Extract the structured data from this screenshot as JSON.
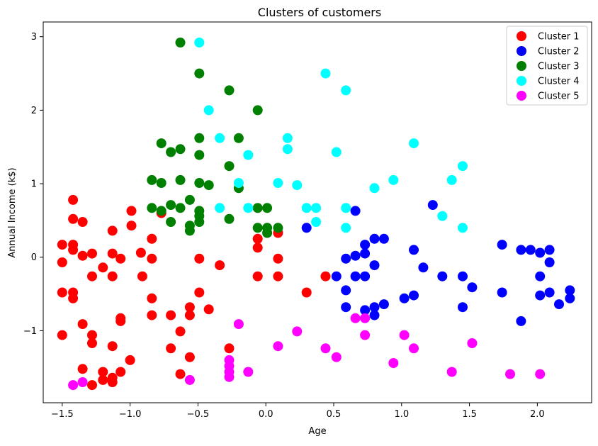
{
  "chart_data": {
    "type": "scatter",
    "title": "Clusters of customers",
    "xlabel": "Age",
    "ylabel": "Annual Income (k$)",
    "xlim": [
      -1.64,
      2.4
    ],
    "ylim": [
      -1.98,
      3.2
    ],
    "xticks": [
      -1.5,
      -1.0,
      -0.5,
      0.0,
      0.5,
      1.0,
      1.5,
      2.0
    ],
    "xtick_labels": [
      "−1.5",
      "−1.0",
      "−0.5",
      "0.0",
      "0.5",
      "1.0",
      "1.5",
      "2.0"
    ],
    "yticks": [
      -1,
      0,
      1,
      2,
      3
    ],
    "ytick_labels": [
      "−1",
      "0",
      "1",
      "2",
      "3"
    ],
    "grid": false,
    "legend_position": "top-right",
    "series": [
      {
        "name": "Cluster 1",
        "color": "#ff0000",
        "points": [
          [
            -1.42,
            0.78
          ],
          [
            -1.42,
            0.52
          ],
          [
            -1.35,
            0.48
          ],
          [
            -1.5,
            0.17
          ],
          [
            -1.42,
            0.17
          ],
          [
            -1.42,
            0.1
          ],
          [
            -1.35,
            0.02
          ],
          [
            -1.28,
            0.05
          ],
          [
            -1.5,
            -0.07
          ],
          [
            -1.28,
            -0.26
          ],
          [
            -1.2,
            -0.14
          ],
          [
            -1.5,
            -0.48
          ],
          [
            -1.42,
            -0.48
          ],
          [
            -1.42,
            -0.56
          ],
          [
            -1.35,
            -0.91
          ],
          [
            -1.5,
            -1.06
          ],
          [
            -1.28,
            -1.06
          ],
          [
            -1.28,
            -1.17
          ],
          [
            -1.35,
            -1.52
          ],
          [
            -1.2,
            -1.56
          ],
          [
            -1.2,
            -1.67
          ],
          [
            -1.28,
            -1.74
          ],
          [
            -1.13,
            -1.64
          ],
          [
            -1.13,
            -1.7
          ],
          [
            -1.13,
            0.36
          ],
          [
            -1.13,
            0.05
          ],
          [
            -1.07,
            -0.02
          ],
          [
            -1.13,
            -0.26
          ],
          [
            -1.13,
            -1.21
          ],
          [
            -1.07,
            -0.83
          ],
          [
            -1.07,
            -0.87
          ],
          [
            -1.07,
            -1.56
          ],
          [
            -1.0,
            -1.4
          ],
          [
            -0.99,
            0.63
          ],
          [
            -0.99,
            0.43
          ],
          [
            -0.92,
            0.06
          ],
          [
            -0.91,
            -0.26
          ],
          [
            -0.84,
            0.25
          ],
          [
            -0.84,
            -0.02
          ],
          [
            -0.84,
            -0.56
          ],
          [
            -0.84,
            -0.79
          ],
          [
            -0.77,
            0.6
          ],
          [
            -0.7,
            -0.79
          ],
          [
            -0.7,
            -1.24
          ],
          [
            -0.63,
            -1.01
          ],
          [
            -0.63,
            -1.59
          ],
          [
            -0.56,
            -0.68
          ],
          [
            -0.56,
            -0.79
          ],
          [
            -0.56,
            -1.36
          ],
          [
            -0.49,
            -0.02
          ],
          [
            -0.49,
            -0.48
          ],
          [
            -0.42,
            -0.71
          ],
          [
            -0.34,
            -0.11
          ],
          [
            -0.27,
            -1.24
          ],
          [
            -0.06,
            0.25
          ],
          [
            -0.06,
            0.13
          ],
          [
            -0.06,
            -0.26
          ],
          [
            0.09,
            0.33
          ],
          [
            0.09,
            -0.02
          ],
          [
            0.09,
            -0.26
          ],
          [
            0.3,
            -0.48
          ],
          [
            0.44,
            -0.26
          ]
        ]
      },
      {
        "name": "Cluster 2",
        "color": "#0000ff",
        "points": [
          [
            0.3,
            0.4
          ],
          [
            0.52,
            -0.26
          ],
          [
            0.59,
            -0.02
          ],
          [
            0.59,
            -0.45
          ],
          [
            0.59,
            -0.68
          ],
          [
            0.66,
            0.63
          ],
          [
            0.66,
            0.02
          ],
          [
            0.66,
            -0.26
          ],
          [
            0.73,
            0.17
          ],
          [
            0.73,
            0.05
          ],
          [
            0.73,
            -0.26
          ],
          [
            0.73,
            -0.72
          ],
          [
            0.8,
            0.25
          ],
          [
            0.8,
            -0.11
          ],
          [
            0.8,
            -0.68
          ],
          [
            0.8,
            -0.79
          ],
          [
            0.87,
            0.25
          ],
          [
            0.87,
            -0.64
          ],
          [
            1.02,
            -0.56
          ],
          [
            1.09,
            0.1
          ],
          [
            1.09,
            -0.52
          ],
          [
            1.16,
            -0.14
          ],
          [
            1.23,
            0.71
          ],
          [
            1.3,
            -0.26
          ],
          [
            1.45,
            -0.26
          ],
          [
            1.45,
            -0.68
          ],
          [
            1.52,
            -0.41
          ],
          [
            1.74,
            0.17
          ],
          [
            1.74,
            -0.48
          ],
          [
            1.88,
            0.1
          ],
          [
            1.88,
            -0.87
          ],
          [
            1.95,
            0.1
          ],
          [
            2.02,
            0.06
          ],
          [
            2.02,
            -0.26
          ],
          [
            2.02,
            -0.52
          ],
          [
            2.09,
            0.1
          ],
          [
            2.09,
            -0.07
          ],
          [
            2.09,
            -0.48
          ],
          [
            2.16,
            -0.64
          ],
          [
            2.24,
            -0.45
          ],
          [
            2.24,
            -0.56
          ]
        ]
      },
      {
        "name": "Cluster 3",
        "color": "#008000",
        "points": [
          [
            -0.63,
            2.92
          ],
          [
            -0.49,
            2.5
          ],
          [
            -0.27,
            2.27
          ],
          [
            -0.06,
            2.0
          ],
          [
            -0.77,
            1.55
          ],
          [
            -0.7,
            1.43
          ],
          [
            -0.63,
            1.47
          ],
          [
            -0.49,
            1.62
          ],
          [
            -0.49,
            1.39
          ],
          [
            -0.27,
            1.24
          ],
          [
            -0.2,
            1.62
          ],
          [
            -0.84,
            1.05
          ],
          [
            -0.77,
            1.01
          ],
          [
            -0.63,
            1.05
          ],
          [
            -0.49,
            1.01
          ],
          [
            -0.42,
            0.98
          ],
          [
            -0.2,
            0.94
          ],
          [
            -0.84,
            0.67
          ],
          [
            -0.77,
            0.63
          ],
          [
            -0.7,
            0.71
          ],
          [
            -0.63,
            0.67
          ],
          [
            -0.56,
            0.78
          ],
          [
            -0.49,
            0.63
          ],
          [
            -0.49,
            0.56
          ],
          [
            -0.49,
            0.48
          ],
          [
            -0.7,
            0.48
          ],
          [
            -0.56,
            0.43
          ],
          [
            -0.56,
            0.36
          ],
          [
            -0.27,
            0.52
          ],
          [
            -0.06,
            0.67
          ],
          [
            0.01,
            0.67
          ],
          [
            -0.06,
            0.4
          ],
          [
            0.01,
            0.4
          ],
          [
            0.01,
            0.33
          ],
          [
            0.09,
            0.4
          ]
        ]
      },
      {
        "name": "Cluster 4",
        "color": "#00ffff",
        "points": [
          [
            -0.49,
            2.92
          ],
          [
            0.44,
            2.5
          ],
          [
            0.59,
            2.27
          ],
          [
            -0.42,
            2.0
          ],
          [
            -0.34,
            1.62
          ],
          [
            0.16,
            1.62
          ],
          [
            -0.13,
            1.39
          ],
          [
            0.16,
            1.47
          ],
          [
            0.52,
            1.43
          ],
          [
            1.09,
            1.55
          ],
          [
            1.45,
            1.24
          ],
          [
            -0.2,
            1.01
          ],
          [
            0.09,
            1.01
          ],
          [
            0.23,
            0.98
          ],
          [
            0.8,
            0.94
          ],
          [
            0.94,
            1.05
          ],
          [
            1.37,
            1.05
          ],
          [
            -0.34,
            0.67
          ],
          [
            -0.13,
            0.67
          ],
          [
            0.3,
            0.67
          ],
          [
            0.37,
            0.67
          ],
          [
            0.59,
            0.67
          ],
          [
            0.37,
            0.48
          ],
          [
            0.59,
            0.4
          ],
          [
            1.3,
            0.56
          ],
          [
            1.45,
            0.4
          ]
        ]
      },
      {
        "name": "Cluster 5",
        "color": "#ff00ff",
        "points": [
          [
            -1.42,
            -1.74
          ],
          [
            -1.35,
            -1.7
          ],
          [
            -0.56,
            -1.67
          ],
          [
            -0.2,
            -0.91
          ],
          [
            -0.27,
            -1.4
          ],
          [
            -0.27,
            -1.48
          ],
          [
            -0.27,
            -1.56
          ],
          [
            -0.27,
            -1.63
          ],
          [
            -0.13,
            -1.56
          ],
          [
            0.09,
            -1.21
          ],
          [
            0.23,
            -1.01
          ],
          [
            0.44,
            -1.24
          ],
          [
            0.52,
            -1.36
          ],
          [
            0.66,
            -0.83
          ],
          [
            0.73,
            -0.83
          ],
          [
            0.73,
            -1.06
          ],
          [
            0.94,
            -1.44
          ],
          [
            1.02,
            -1.06
          ],
          [
            1.09,
            -1.24
          ],
          [
            1.37,
            -1.56
          ],
          [
            1.52,
            -1.17
          ],
          [
            1.8,
            -1.59
          ],
          [
            2.02,
            -1.59
          ]
        ]
      }
    ]
  }
}
